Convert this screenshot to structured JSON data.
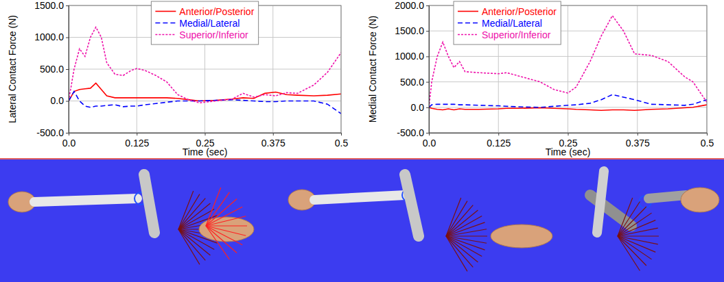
{
  "chart_data": [
    {
      "type": "line",
      "xlabel": "Time (sec)",
      "ylabel": "Lateral Contact Force (N)",
      "x": [
        0,
        0.01,
        0.02,
        0.03,
        0.04,
        0.05,
        0.06,
        0.07,
        0.085,
        0.1,
        0.115,
        0.125,
        0.14,
        0.16,
        0.18,
        0.2,
        0.22,
        0.24,
        0.27,
        0.3,
        0.32,
        0.34,
        0.36,
        0.38,
        0.4,
        0.42,
        0.45,
        0.475,
        0.5
      ],
      "series": [
        {
          "name": "Anterior/Posterior",
          "color": "#ff0000",
          "line_style": "solid",
          "values": [
            0,
            150,
            180,
            190,
            200,
            280,
            180,
            80,
            50,
            50,
            50,
            50,
            50,
            50,
            50,
            40,
            20,
            0,
            10,
            30,
            50,
            40,
            120,
            140,
            100,
            90,
            80,
            90,
            110
          ]
        },
        {
          "name": "Medial/Lateral",
          "color": "#0000ff",
          "line_style": "dashed",
          "values": [
            0,
            150,
            0,
            -80,
            -100,
            -80,
            -80,
            -70,
            -60,
            -90,
            -80,
            -80,
            -60,
            -40,
            -20,
            0,
            0,
            0,
            10,
            20,
            10,
            0,
            -10,
            -10,
            0,
            0,
            0,
            -50,
            -200
          ]
        },
        {
          "name": "Superior/Inferior",
          "color": "#ee11aa",
          "line_style": "dotted",
          "values": [
            0,
            500,
            820,
            700,
            1000,
            1160,
            1000,
            600,
            420,
            400,
            480,
            510,
            480,
            400,
            300,
            100,
            20,
            -30,
            0,
            30,
            120,
            60,
            100,
            80,
            130,
            120,
            250,
            450,
            760
          ]
        }
      ],
      "xlim": [
        0,
        0.5
      ],
      "xticks": [
        {
          "value": 0,
          "label": "0.0"
        },
        0.125,
        0.25,
        0.375,
        0.5
      ],
      "ylim": [
        -500,
        1500
      ],
      "yticks": [
        {
          "value": -500,
          "label": "-500.0"
        },
        {
          "value": 0,
          "label": "0.0"
        },
        {
          "value": 500,
          "label": "500.0"
        },
        {
          "value": 1000,
          "label": "1000.0"
        },
        {
          "value": 1500,
          "label": "1500.0"
        }
      ],
      "grid": true,
      "legend": "top"
    },
    {
      "type": "line",
      "xlabel": "Time (sec)",
      "ylabel": "Medial Contact Force (N)",
      "x": [
        0,
        0.005,
        0.015,
        0.025,
        0.035,
        0.045,
        0.055,
        0.065,
        0.09,
        0.125,
        0.14,
        0.16,
        0.2,
        0.225,
        0.25,
        0.265,
        0.29,
        0.31,
        0.33,
        0.35,
        0.37,
        0.4,
        0.43,
        0.46,
        0.475,
        0.5
      ],
      "series": [
        {
          "name": "Anterior/Posterior",
          "color": "#ff0000",
          "line_style": "solid",
          "values": [
            0,
            -20,
            -40,
            -50,
            -30,
            -50,
            -30,
            -40,
            -40,
            -30,
            -20,
            -20,
            -10,
            -20,
            -30,
            -40,
            -50,
            -60,
            -50,
            -50,
            -60,
            -40,
            -30,
            -10,
            0,
            50
          ]
        },
        {
          "name": "Medial/Lateral",
          "color": "#0000ff",
          "line_style": "dashed",
          "values": [
            0,
            50,
            60,
            60,
            60,
            60,
            50,
            50,
            40,
            30,
            20,
            10,
            0,
            20,
            40,
            50,
            80,
            150,
            250,
            200,
            150,
            60,
            50,
            40,
            60,
            150
          ]
        },
        {
          "name": "Superior/Inferior",
          "color": "#ee11aa",
          "line_style": "dotted",
          "values": [
            0,
            500,
            1000,
            1280,
            1000,
            780,
            900,
            700,
            680,
            660,
            680,
            620,
            500,
            350,
            280,
            400,
            900,
            1400,
            1800,
            1500,
            1050,
            1020,
            900,
            600,
            500,
            100
          ]
        }
      ],
      "xlim": [
        0,
        0.5
      ],
      "xticks": [
        {
          "value": 0,
          "label": "0.0"
        },
        0.125,
        0.25,
        0.375,
        0.5
      ],
      "ylim": [
        -500,
        2000
      ],
      "yticks": [
        {
          "value": -500,
          "label": "-500.0"
        },
        {
          "value": 0,
          "label": "0.0"
        },
        {
          "value": 500,
          "label": "500.0"
        },
        {
          "value": 1000,
          "label": "1000.0"
        },
        {
          "value": 1500,
          "label": "1500.0"
        },
        {
          "value": 2000,
          "label": "2000.0"
        }
      ],
      "grid": true,
      "legend": "top left"
    }
  ]
}
